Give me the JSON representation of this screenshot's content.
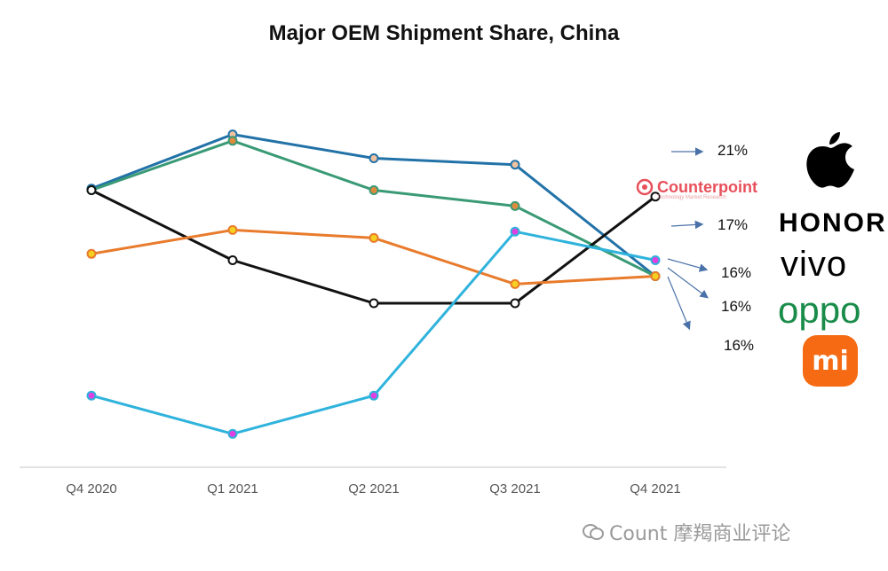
{
  "chart_data": {
    "type": "line",
    "title": "Major OEM Shipment Share, China",
    "categories": [
      "Q4 2020",
      "Q1 2021",
      "Q2 2021",
      "Q3 2021",
      "Q4 2021"
    ],
    "series": [
      {
        "color": "#2272a8",
        "marker": "#f0c2a0",
        "values": [
          21.5,
          24.9,
          23.4,
          23.0,
          16.0
        ]
      },
      {
        "color": "#3a9a76",
        "marker": "#e08a3c",
        "values": [
          21.4,
          24.5,
          21.4,
          20.4,
          16.0
        ]
      },
      {
        "color": "#111111",
        "marker": "#ffffff",
        "values": [
          21.4,
          17.0,
          14.3,
          14.3,
          21.0
        ]
      },
      {
        "color": "#e87b2c",
        "marker": "#f5d020",
        "values": [
          17.4,
          18.9,
          18.4,
          15.5,
          16.0
        ]
      },
      {
        "color": "#2fb3dc",
        "marker": "#e040e0",
        "values": [
          8.5,
          6.1,
          8.5,
          18.8,
          17.0
        ]
      }
    ],
    "ylim": [
      4,
      30
    ],
    "grid": false,
    "end_labels": [
      "21%",
      "17%",
      "16%",
      "16%",
      "16%"
    ]
  },
  "brands": {
    "apple": "apple-logo",
    "honor": "HONOR",
    "vivo": "vivo",
    "oppo": "oppo",
    "xiaomi": "mi"
  },
  "source_logo": {
    "name": "Counterpoint",
    "tagline": "Technology Market Research"
  },
  "watermark": "Count 摩羯商业评论"
}
